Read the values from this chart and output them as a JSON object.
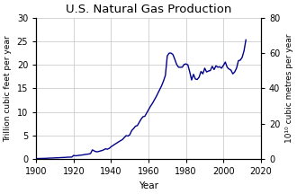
{
  "title": "U.S. Natural Gas Production",
  "xlabel": "Year",
  "ylabel_left": "Trillion cubic feet per year",
  "ylabel_right": "10¹⁰ cubic metres per year",
  "xlim": [
    1900,
    2020
  ],
  "ylim_left": [
    0,
    30
  ],
  "ylim_right": [
    0,
    80
  ],
  "yticks_left": [
    0,
    5,
    10,
    15,
    20,
    25,
    30
  ],
  "yticks_right": [
    0,
    20,
    40,
    60,
    80
  ],
  "xticks": [
    1900,
    1920,
    1940,
    1960,
    1980,
    2000,
    2020
  ],
  "line_color": "#00008B",
  "bg_color": "#ffffff",
  "grid_color": "#cccccc",
  "years": [
    1900,
    1901,
    1902,
    1903,
    1904,
    1905,
    1906,
    1907,
    1908,
    1909,
    1910,
    1911,
    1912,
    1913,
    1914,
    1915,
    1916,
    1917,
    1918,
    1919,
    1920,
    1921,
    1922,
    1923,
    1924,
    1925,
    1926,
    1927,
    1928,
    1929,
    1930,
    1931,
    1932,
    1933,
    1934,
    1935,
    1936,
    1937,
    1938,
    1939,
    1940,
    1941,
    1942,
    1943,
    1944,
    1945,
    1946,
    1947,
    1948,
    1949,
    1950,
    1951,
    1952,
    1953,
    1954,
    1955,
    1956,
    1957,
    1958,
    1959,
    1960,
    1961,
    1962,
    1963,
    1964,
    1965,
    1966,
    1967,
    1968,
    1969,
    1970,
    1971,
    1972,
    1973,
    1974,
    1975,
    1976,
    1977,
    1978,
    1979,
    1980,
    1981,
    1982,
    1983,
    1984,
    1985,
    1986,
    1987,
    1988,
    1989,
    1990,
    1991,
    1992,
    1993,
    1994,
    1995,
    1996,
    1997,
    1998,
    1999,
    2000,
    2001,
    2002,
    2003,
    2004,
    2005,
    2006,
    2007,
    2008,
    2009,
    2010,
    2011,
    2012
  ],
  "values_tcf": [
    0.13,
    0.14,
    0.15,
    0.16,
    0.17,
    0.18,
    0.2,
    0.23,
    0.24,
    0.25,
    0.28,
    0.29,
    0.31,
    0.34,
    0.35,
    0.37,
    0.4,
    0.43,
    0.44,
    0.45,
    0.8,
    0.72,
    0.76,
    0.83,
    0.86,
    0.92,
    1.0,
    1.05,
    1.1,
    1.2,
    1.98,
    1.75,
    1.58,
    1.6,
    1.72,
    1.82,
    1.98,
    2.2,
    2.12,
    2.3,
    2.65,
    2.9,
    3.18,
    3.42,
    3.68,
    3.92,
    4.15,
    4.58,
    5.0,
    4.9,
    5.2,
    6.08,
    6.5,
    7.0,
    7.12,
    7.8,
    8.5,
    9.0,
    9.1,
    9.8,
    10.5,
    11.2,
    11.8,
    12.5,
    13.2,
    14.0,
    14.8,
    15.6,
    16.6,
    17.8,
    21.9,
    22.5,
    22.5,
    22.2,
    21.2,
    20.1,
    19.5,
    19.5,
    19.5,
    20.1,
    20.2,
    20.0,
    18.5,
    16.8,
    18.0,
    17.0,
    16.9,
    17.4,
    18.6,
    18.1,
    19.3,
    18.5,
    18.7,
    18.8,
    19.7,
    19.0,
    19.8,
    19.5,
    19.6,
    19.3,
    19.9,
    20.6,
    19.5,
    19.1,
    18.9,
    18.1,
    18.5,
    19.3,
    20.9,
    21.0,
    21.6,
    23.0,
    25.3
  ]
}
